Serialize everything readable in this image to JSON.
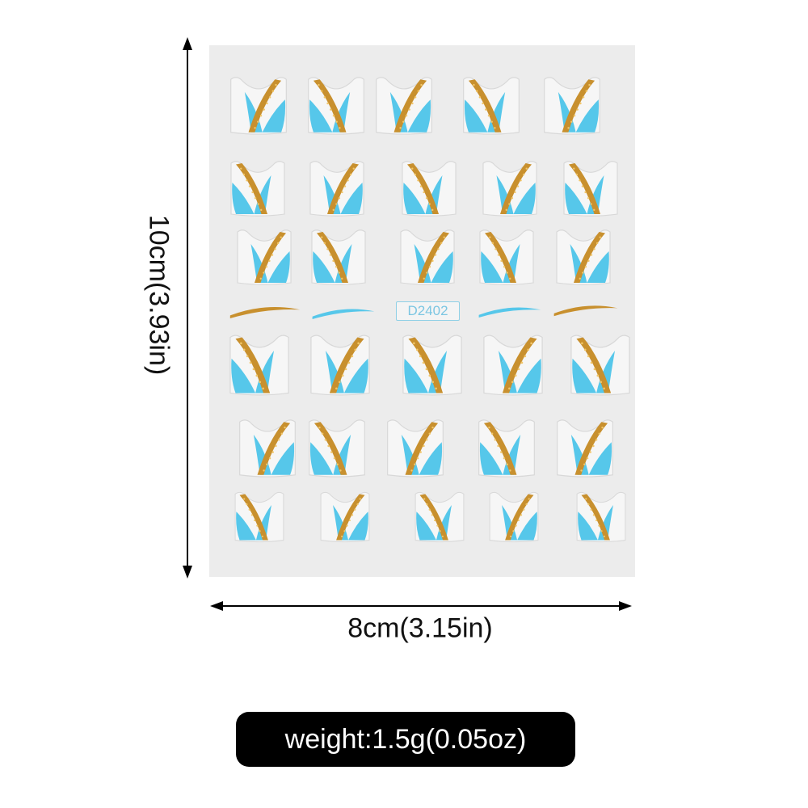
{
  "product": {
    "sheet_code": "D2402",
    "colors": {
      "sheet": "#ececec",
      "blue": "#56c7ea",
      "gold": "#c8902e",
      "glitter": "#f1c66a"
    }
  },
  "dimensions": {
    "height_label": "10cm(3.93in)",
    "width_label": "8cm(3.15in)",
    "weight_label": "weight:1.5g(0.05oz)"
  }
}
